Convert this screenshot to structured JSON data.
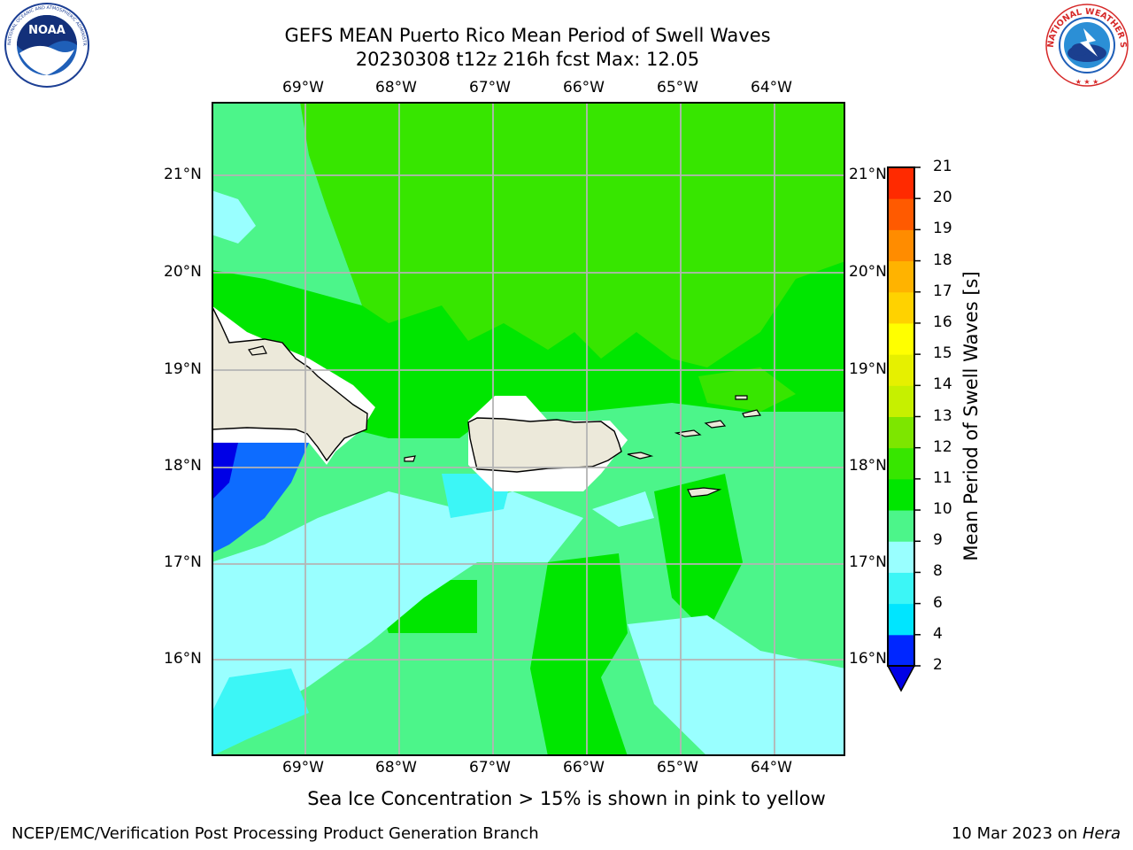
{
  "header": {
    "title_line1": "GEFS MEAN Puerto Rico Mean Period of Swell Waves",
    "title_line2": "20230308 t12z 216h fcst   Max: 12.05"
  },
  "logos": {
    "left": {
      "name": "NOAA",
      "ring_text": "NATIONAL OCEANIC AND ATMOSPHERIC ADMINISTRATION · U.S. DEPARTMENT OF COMMERCE"
    },
    "right": {
      "name": "NATIONAL WEATHER SERVICE"
    }
  },
  "map": {
    "lon_labels": [
      "69°W",
      "68°W",
      "67°W",
      "66°W",
      "65°W",
      "64°W"
    ],
    "lat_labels": [
      "21°N",
      "20°N",
      "19°N",
      "18°N",
      "17°N",
      "16°N"
    ]
  },
  "colorbar": {
    "label": "Mean Period of Swell Waves [s]",
    "ticks": [
      "2",
      "4",
      "6",
      "8",
      "9",
      "10",
      "11",
      "12",
      "13",
      "14",
      "15",
      "16",
      "17",
      "18",
      "19",
      "20",
      "21"
    ],
    "colors": [
      "#0026ff",
      "#00e5ff",
      "#3cf6f6",
      "#99ffff",
      "#4cf58a",
      "#00e600",
      "#37e600",
      "#7de600",
      "#c6f000",
      "#e6f000",
      "#ffff00",
      "#ffd200",
      "#ffb300",
      "#ff8c00",
      "#ff5a00",
      "#ff2a00"
    ],
    "underflow_color": "#0000e6"
  },
  "note": "Sea Ice Concentration > 15% is shown in pink to yellow",
  "footer": {
    "left": "NCEP/EMC/Verification Post Processing Product Generation Branch",
    "right_prefix": "10 Mar 2023 on ",
    "right_host": "Hera"
  }
}
